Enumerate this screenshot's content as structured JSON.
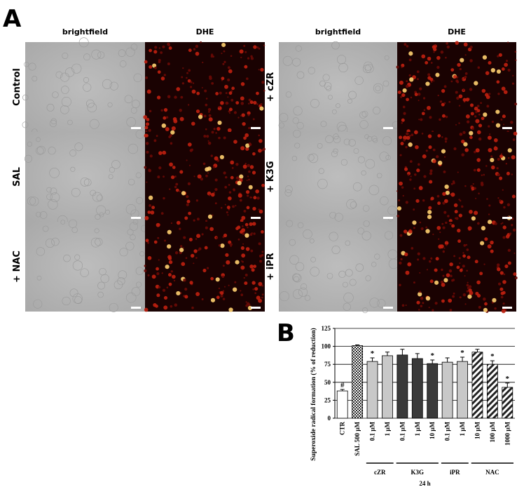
{
  "panel_a": {
    "label": "A",
    "columns": [
      "brightfield",
      "DHE",
      "brightfield",
      "DHE"
    ],
    "rows_left": [
      "Control",
      "SAL",
      "+ NAC"
    ],
    "rows_right": [
      "+ cZR",
      "+ K3G",
      "+ iPR"
    ]
  },
  "chart_data": {
    "type": "bar",
    "panel_label": "B",
    "y_label": "Superoxide radical formation (% of reduction)",
    "x_label": "24 h",
    "categories": [
      "CTR",
      "SAL 500 µM",
      "0.1 µM",
      "1 µM",
      "0.1 µM",
      "1 µM",
      "10 µM",
      "0.1 µM",
      "1 µM",
      "10 µM",
      "100 µM",
      "1000 µM"
    ],
    "values": [
      38,
      101,
      79,
      87,
      88,
      83,
      76,
      78,
      79,
      92,
      75,
      43
    ],
    "errors": [
      2,
      1,
      5,
      5,
      8,
      7,
      5,
      6,
      6,
      4,
      5,
      6
    ],
    "colors": [
      "#ffffff",
      "#333333",
      "#c8c8c8",
      "#c8c8c8",
      "#3a3a3a",
      "#3a3a3a",
      "#3a3a3a",
      "#c8c8c8",
      "#c8c8c8",
      "#ffffff",
      "#ffffff",
      "#ffffff"
    ],
    "patterns": [
      "solid",
      "checker",
      "solid",
      "solid",
      "solid",
      "solid",
      "solid",
      "solid",
      "solid",
      "hatch",
      "hatch",
      "hatch"
    ],
    "markers": [
      "#",
      null,
      "*",
      null,
      null,
      null,
      "*",
      null,
      "*",
      null,
      "*",
      "*"
    ],
    "groups": [
      {
        "name": "cZR",
        "start": 2,
        "end": 3
      },
      {
        "name": "K3G",
        "start": 4,
        "end": 6
      },
      {
        "name": "iPR",
        "start": 7,
        "end": 8
      },
      {
        "name": "NAC",
        "start": 9,
        "end": 11
      }
    ],
    "ylim": [
      0,
      125
    ],
    "yticks": [
      0,
      25,
      50,
      75,
      100,
      125
    ],
    "grid": true
  }
}
